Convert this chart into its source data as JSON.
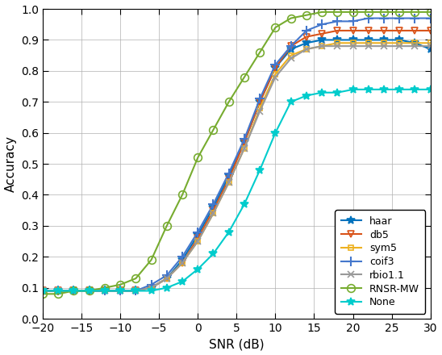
{
  "snr": [
    -20,
    -18,
    -16,
    -14,
    -12,
    -10,
    -8,
    -6,
    -4,
    -2,
    0,
    2,
    4,
    6,
    8,
    10,
    12,
    14,
    16,
    18,
    20,
    22,
    24,
    26,
    28,
    30
  ],
  "haar": [
    0.09,
    0.09,
    0.09,
    0.09,
    0.09,
    0.09,
    0.09,
    0.1,
    0.13,
    0.19,
    0.27,
    0.36,
    0.46,
    0.57,
    0.7,
    0.81,
    0.87,
    0.89,
    0.9,
    0.9,
    0.9,
    0.9,
    0.9,
    0.9,
    0.89,
    0.87
  ],
  "db5": [
    0.09,
    0.09,
    0.09,
    0.09,
    0.09,
    0.09,
    0.09,
    0.1,
    0.13,
    0.18,
    0.26,
    0.35,
    0.45,
    0.57,
    0.7,
    0.81,
    0.88,
    0.91,
    0.92,
    0.93,
    0.93,
    0.93,
    0.93,
    0.93,
    0.93,
    0.93
  ],
  "sym5": [
    0.09,
    0.09,
    0.09,
    0.09,
    0.09,
    0.09,
    0.09,
    0.1,
    0.13,
    0.18,
    0.25,
    0.34,
    0.44,
    0.55,
    0.68,
    0.79,
    0.85,
    0.87,
    0.88,
    0.89,
    0.89,
    0.89,
    0.89,
    0.89,
    0.89,
    0.89
  ],
  "coif3": [
    0.09,
    0.09,
    0.09,
    0.09,
    0.09,
    0.09,
    0.09,
    0.11,
    0.14,
    0.2,
    0.28,
    0.37,
    0.47,
    0.58,
    0.71,
    0.82,
    0.88,
    0.93,
    0.95,
    0.96,
    0.96,
    0.97,
    0.97,
    0.97,
    0.97,
    0.97
  ],
  "rbio1_1": [
    0.09,
    0.09,
    0.09,
    0.09,
    0.09,
    0.09,
    0.09,
    0.1,
    0.13,
    0.18,
    0.25,
    0.34,
    0.44,
    0.55,
    0.67,
    0.78,
    0.84,
    0.87,
    0.88,
    0.88,
    0.88,
    0.88,
    0.88,
    0.88,
    0.88,
    0.88
  ],
  "rnsr_mw": [
    0.08,
    0.08,
    0.09,
    0.09,
    0.1,
    0.11,
    0.13,
    0.19,
    0.3,
    0.4,
    0.52,
    0.61,
    0.7,
    0.78,
    0.86,
    0.94,
    0.97,
    0.98,
    0.99,
    0.99,
    0.99,
    0.99,
    0.99,
    0.99,
    0.99,
    0.99
  ],
  "none": [
    0.09,
    0.09,
    0.09,
    0.09,
    0.09,
    0.09,
    0.09,
    0.09,
    0.1,
    0.12,
    0.16,
    0.21,
    0.28,
    0.37,
    0.48,
    0.6,
    0.7,
    0.72,
    0.73,
    0.73,
    0.74,
    0.74,
    0.74,
    0.74,
    0.74,
    0.74
  ],
  "series": [
    {
      "key": "haar",
      "label": "haar",
      "color": "#0072BD",
      "marker": "*",
      "ms": 7,
      "mfc": "#0072BD",
      "mew": 1.2
    },
    {
      "key": "db5",
      "label": "db5",
      "color": "#D95319",
      "marker": "v",
      "ms": 6,
      "mfc": "none",
      "mew": 1.2
    },
    {
      "key": "sym5",
      "label": "sym5",
      "color": "#EDB120",
      "marker": "s",
      "ms": 5,
      "mfc": "none",
      "mew": 1.2
    },
    {
      "key": "coif3",
      "label": "coif3",
      "color": "#4477CC",
      "marker": "+",
      "ms": 8,
      "mfc": "#4477CC",
      "mew": 1.5
    },
    {
      "key": "rbio1_1",
      "label": "rbio1.1",
      "color": "#999999",
      "marker": "x",
      "ms": 6,
      "mfc": "#999999",
      "mew": 1.2
    },
    {
      "key": "rnsr_mw",
      "label": "RNSR-MW",
      "color": "#77AC30",
      "marker": "o",
      "ms": 7,
      "mfc": "none",
      "mew": 1.2
    },
    {
      "key": "none",
      "label": "None",
      "color": "#00CCCC",
      "marker": "*",
      "ms": 7,
      "mfc": "#00CCCC",
      "mew": 1.2
    }
  ],
  "xlabel": "SNR (dB)",
  "ylabel": "Accuracy",
  "xlim": [
    -20,
    30
  ],
  "ylim": [
    0,
    1.0
  ],
  "xticks": [
    -20,
    -15,
    -10,
    -5,
    0,
    5,
    10,
    15,
    20,
    25,
    30
  ],
  "yticks": [
    0,
    0.1,
    0.2,
    0.3,
    0.4,
    0.5,
    0.6,
    0.7,
    0.8,
    0.9,
    1.0
  ],
  "lw": 1.5,
  "legend_loc": "lower right",
  "legend_fontsize": 9,
  "tick_fontsize": 10,
  "label_fontsize": 11,
  "grid_color": "#b0b0b0",
  "grid_lw": 0.5
}
